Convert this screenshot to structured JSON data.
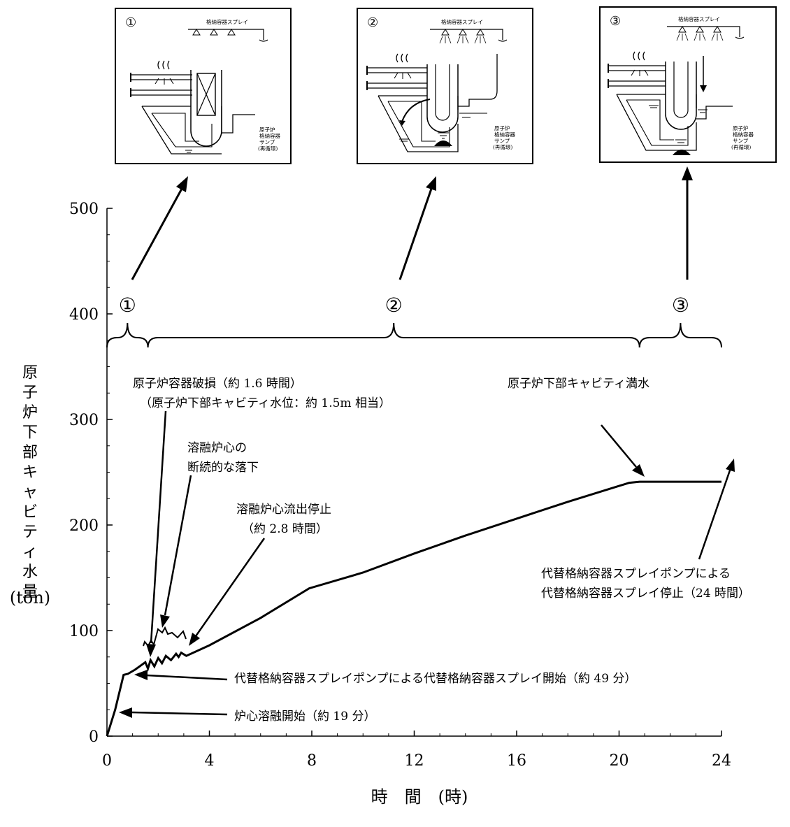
{
  "chart_data": {
    "type": "line",
    "title": "",
    "xlabel": "時　間　(時)",
    "ylabel": "原子炉下部キャビティ水量",
    "yunit": "(ton)",
    "xlim": [
      0,
      24
    ],
    "ylim": [
      0,
      500
    ],
    "xticks": [
      0,
      4,
      8,
      12,
      16,
      20,
      24
    ],
    "yticks": [
      0,
      100,
      200,
      300,
      400,
      500
    ],
    "grid": false,
    "series": [
      {
        "x": [
          0,
          0.32,
          0.65,
          0.82,
          1.1,
          1.5,
          1.6,
          1.7,
          1.85,
          2.0,
          2.15,
          2.3,
          2.5,
          2.7,
          2.8,
          2.9,
          3.1,
          4,
          6,
          7.9,
          10,
          12,
          14,
          16,
          18,
          20.4,
          20.8,
          22,
          24
        ],
        "y": [
          0,
          25,
          58,
          59,
          63,
          70,
          64,
          72,
          66,
          74,
          69,
          76,
          72,
          78,
          75,
          79,
          76,
          86,
          112,
          140,
          155,
          173,
          190,
          206,
          222,
          240,
          241,
          241,
          241
        ]
      }
    ],
    "phases": [
      {
        "label": "①",
        "from": 0,
        "to": 1.6
      },
      {
        "label": "②",
        "from": 1.6,
        "to": 20.8
      },
      {
        "label": "③",
        "from": 20.8,
        "to": 24
      }
    ],
    "annotations": [
      {
        "text": "原子炉容器破損（約 1.6 時間）",
        "x": 1.6,
        "y": 73
      },
      {
        "text": "（原子炉下部キャビティ水位：約 1.5m 相当）",
        "x": 1.6,
        "y": 73
      },
      {
        "text": "溶融炉心の",
        "x": 2.0,
        "y": 74
      },
      {
        "text": "断続的な落下",
        "x": 2.0,
        "y": 74
      },
      {
        "text": "溶融炉心流出停止",
        "x": 3.1,
        "y": 77
      },
      {
        "text": "（約 2.8 時間）",
        "x": 3.1,
        "y": 77
      },
      {
        "text": "原子炉下部キャビティ満水",
        "x": 20.4,
        "y": 240
      },
      {
        "text": "代替格納容器スプレイポンプによる",
        "x": 24,
        "y": 241
      },
      {
        "text": "代替格納容器スプレイ停止（24 時間）",
        "x": 24,
        "y": 241
      },
      {
        "text": "代替格納容器スプレイポンプによる代替格納容器スプレイ開始（約 49 分）",
        "x": 0.82,
        "y": 59
      },
      {
        "text": "炉心溶融開始（約 19 分）",
        "x": 0.32,
        "y": 25
      }
    ]
  },
  "insets": [
    {
      "number": "①",
      "spray_label": "格納容器スプレイ",
      "sump_label": [
        "原子炉",
        "格納容器",
        "サンプ",
        "(再循環)"
      ]
    },
    {
      "number": "②",
      "spray_label": "格納容器スプレイ",
      "sump_label": [
        "原子炉",
        "格納容器",
        "サンプ",
        "(再循環)"
      ]
    },
    {
      "number": "③",
      "spray_label": "格納容器スプレイ",
      "sump_label": [
        "原子炉",
        "格納容器",
        "サンプ",
        "(再循環)"
      ]
    }
  ]
}
